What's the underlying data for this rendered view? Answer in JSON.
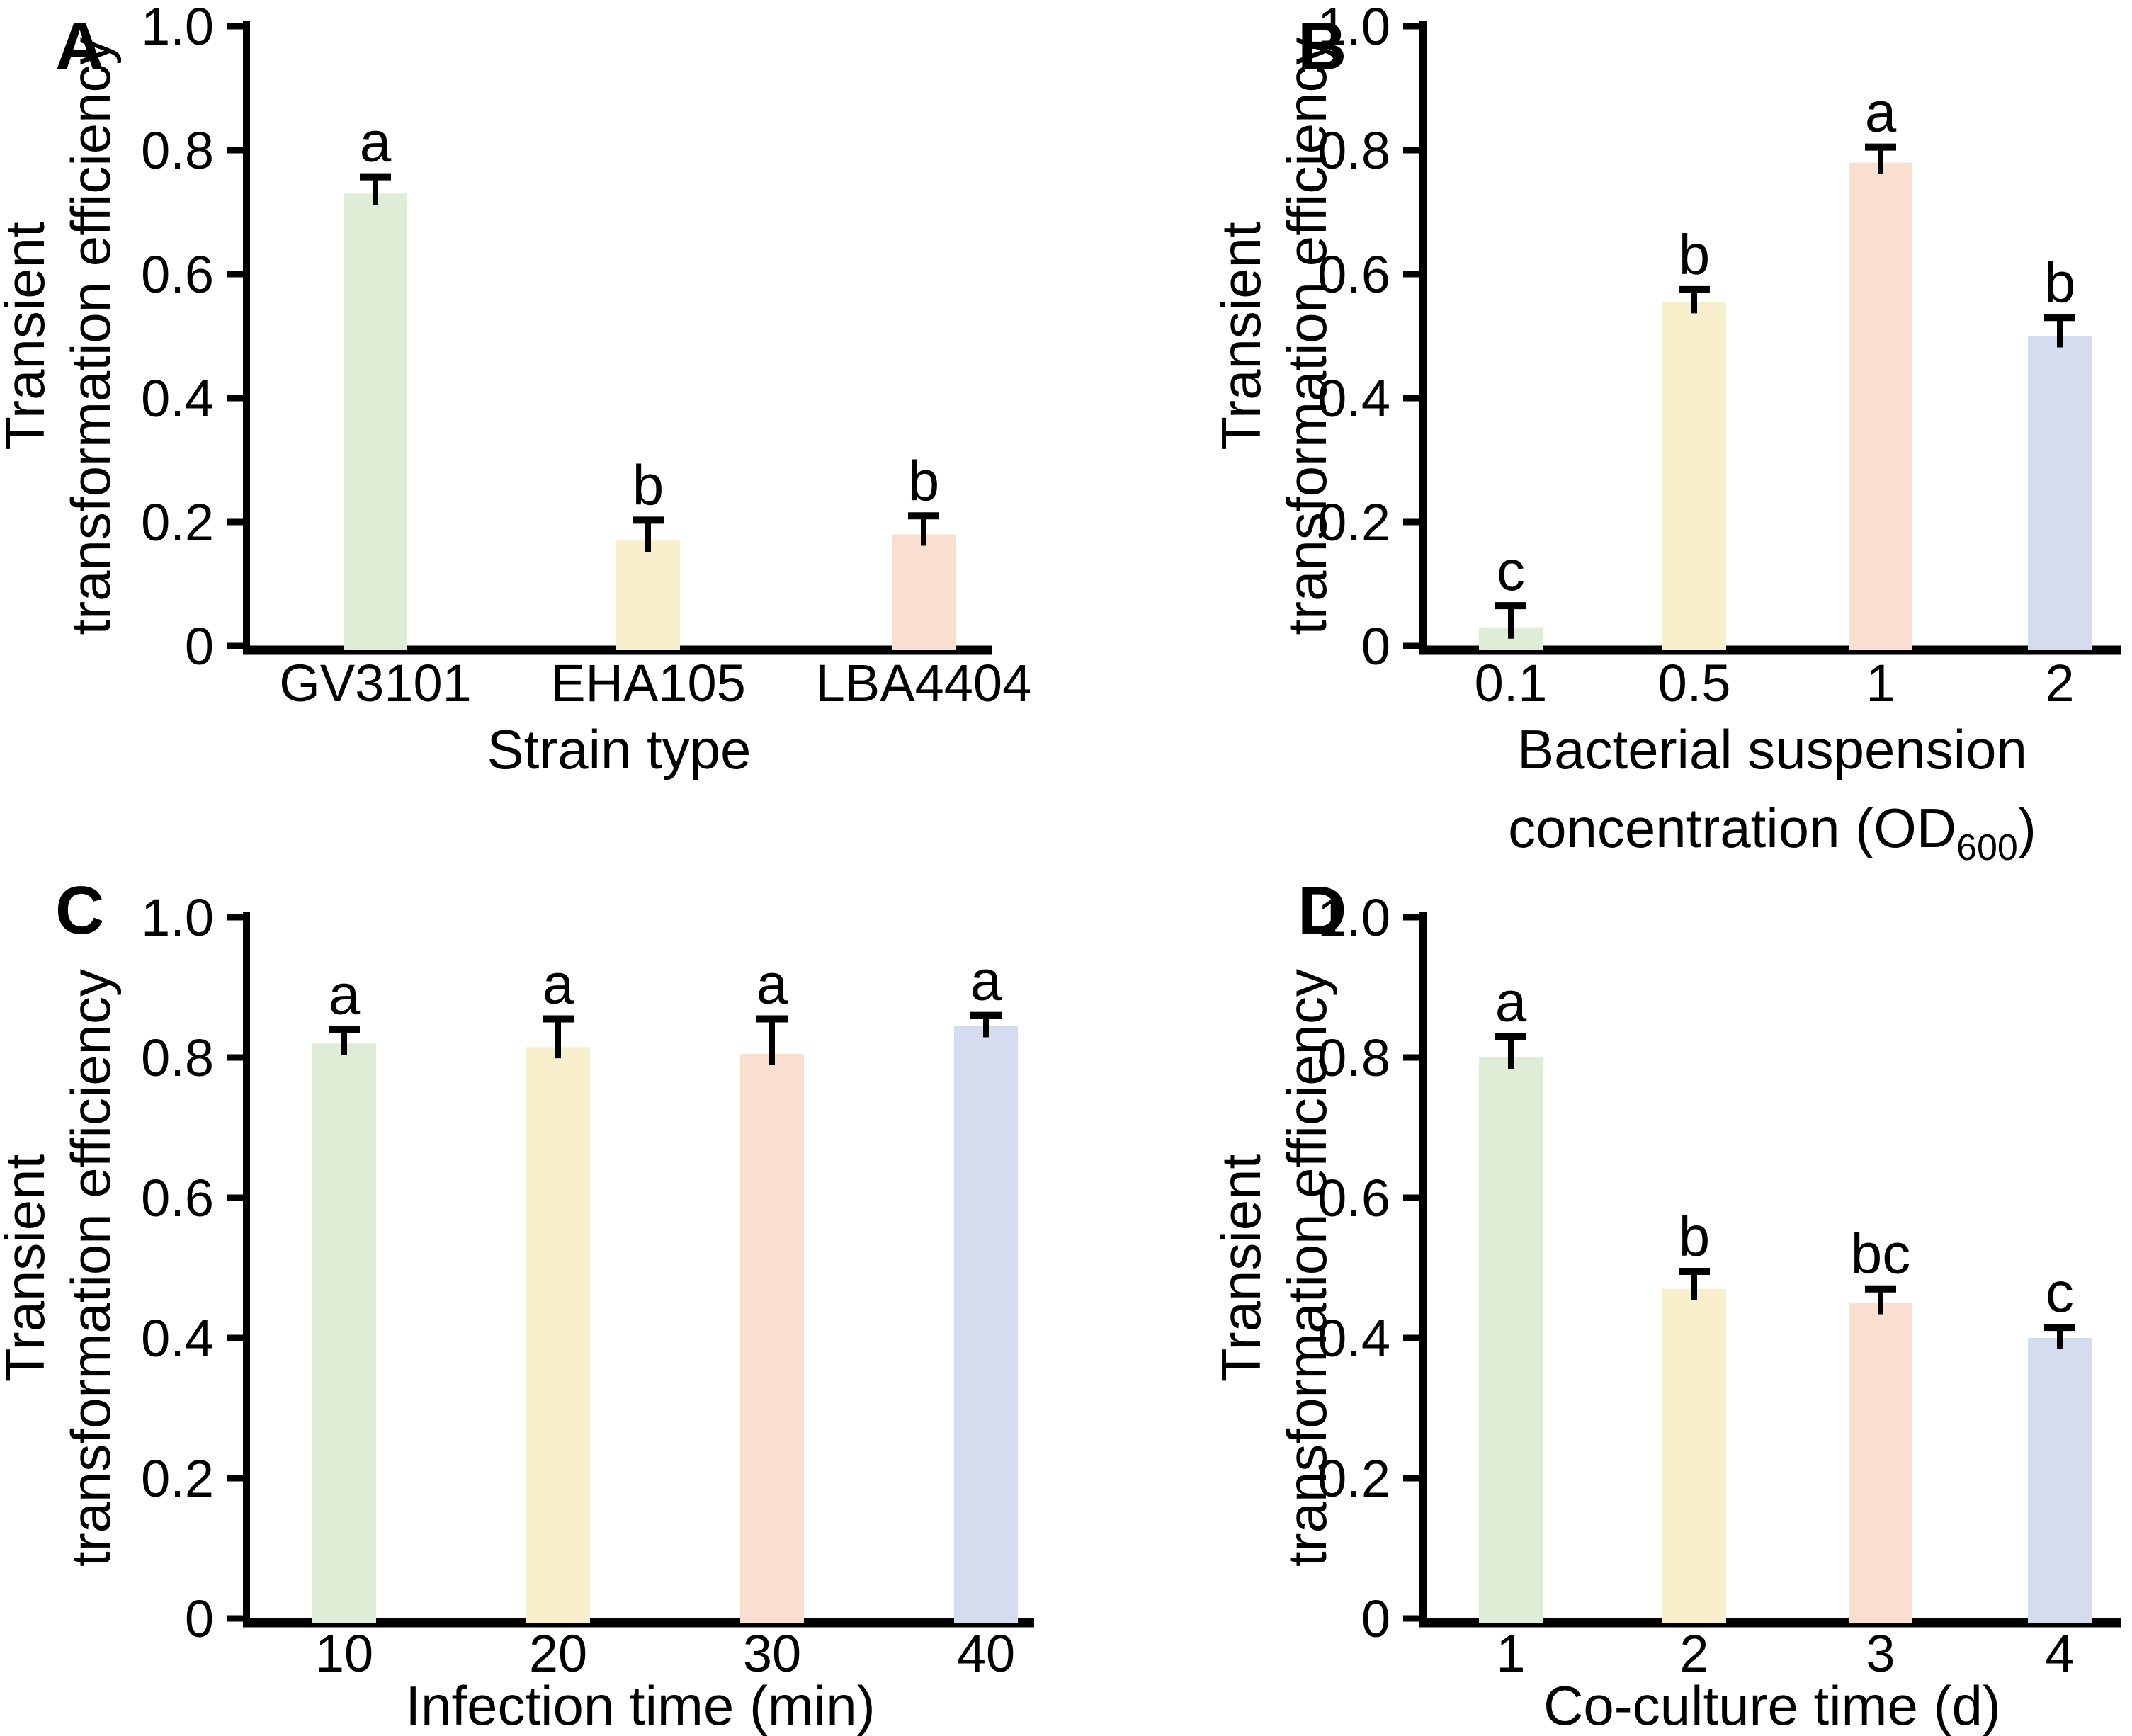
{
  "figure": {
    "background": "#ffffff",
    "y_axis_label_line1": "Transient",
    "y_axis_label_line2": "transformation efficiency",
    "y_tick_labels": [
      "0",
      "0.2",
      "0.4",
      "0.6",
      "0.8",
      "1.0"
    ]
  },
  "colors": {
    "green": "#e0edd6",
    "yellow": "#f8efcc",
    "pink": "#fadfd0",
    "blue": "#d5dcef",
    "axis": "#000000",
    "text": "#000000"
  },
  "chart_data": [
    {
      "panel_label": "A",
      "type": "bar",
      "title": "",
      "xlabel": "Strain type",
      "ylabel": "Transient transformation efficiency",
      "categories": [
        "GV3101",
        "EHA105",
        "LBA4404"
      ],
      "values": [
        0.73,
        0.17,
        0.18
      ],
      "errors": [
        0.027,
        0.033,
        0.03
      ],
      "sig_letters": [
        "a",
        "b",
        "b"
      ],
      "bar_colors": [
        "green",
        "yellow",
        "pink"
      ],
      "ylim": [
        0,
        1.0
      ],
      "yticks": [
        0,
        0.2,
        0.4,
        0.6,
        0.8,
        1.0
      ],
      "grid": false,
      "legend": "none"
    },
    {
      "panel_label": "B",
      "type": "bar",
      "title": "",
      "xlabel_line1": "Bacterial suspension",
      "xlabel_line2_prefix": "concentration (OD",
      "xlabel_line2_sub": "600",
      "xlabel_line2_suffix": ")",
      "ylabel": "Transient transformation efficiency",
      "categories": [
        "0.1",
        "0.5",
        "1",
        "2"
      ],
      "values": [
        0.03,
        0.555,
        0.78,
        0.5
      ],
      "errors": [
        0.035,
        0.02,
        0.025,
        0.03
      ],
      "sig_letters": [
        "c",
        "b",
        "a",
        "b"
      ],
      "bar_colors": [
        "green",
        "yellow",
        "pink",
        "blue"
      ],
      "ylim": [
        0,
        1.0
      ],
      "yticks": [
        0,
        0.2,
        0.4,
        0.6,
        0.8,
        1.0
      ],
      "grid": false,
      "legend": "none"
    },
    {
      "panel_label": "C",
      "type": "bar",
      "title": "",
      "xlabel": "Infection time (min)",
      "ylabel": "Transient transformation efficiency",
      "categories": [
        "10",
        "20",
        "30",
        "40"
      ],
      "values": [
        0.82,
        0.815,
        0.805,
        0.845
      ],
      "errors": [
        0.02,
        0.04,
        0.05,
        0.015
      ],
      "sig_letters": [
        "a",
        "a",
        "a",
        "a"
      ],
      "bar_colors": [
        "green",
        "yellow",
        "pink",
        "blue"
      ],
      "ylim": [
        0,
        1.0
      ],
      "yticks": [
        0,
        0.2,
        0.4,
        0.6,
        0.8,
        1.0
      ],
      "grid": false,
      "legend": "none"
    },
    {
      "panel_label": "D",
      "type": "bar",
      "title": "",
      "xlabel": "Co-culture time (d)",
      "ylabel": "Transient transformation efficiency",
      "categories": [
        "1",
        "2",
        "3",
        "4"
      ],
      "values": [
        0.8,
        0.47,
        0.45,
        0.4
      ],
      "errors": [
        0.03,
        0.025,
        0.02,
        0.015
      ],
      "sig_letters": [
        "a",
        "b",
        "bc",
        "c"
      ],
      "bar_colors": [
        "green",
        "yellow",
        "pink",
        "blue"
      ],
      "ylim": [
        0,
        1.0
      ],
      "yticks": [
        0,
        0.2,
        0.4,
        0.6,
        0.8,
        1.0
      ],
      "grid": false,
      "legend": "none"
    }
  ]
}
